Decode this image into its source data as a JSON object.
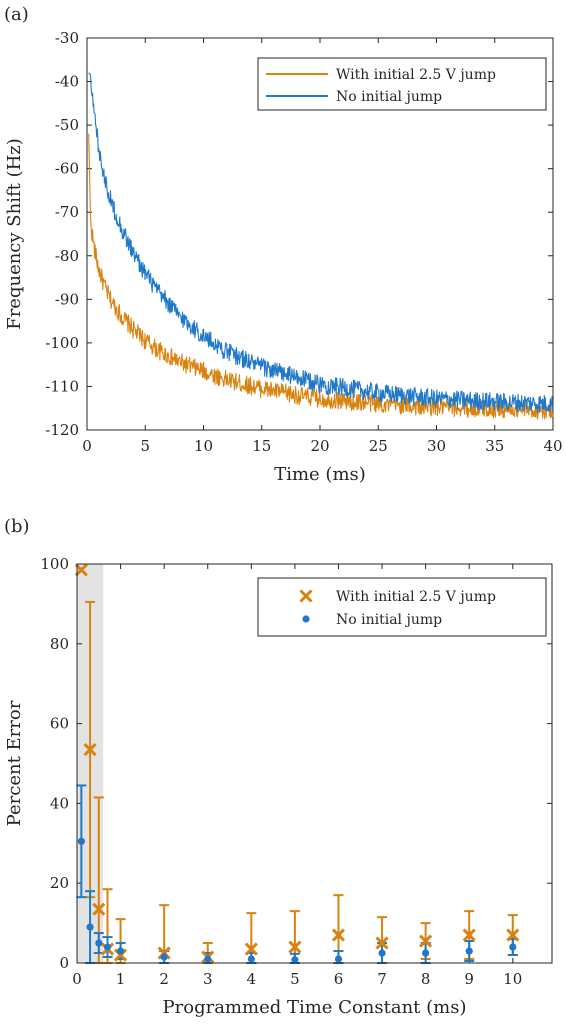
{
  "chart_data": [
    {
      "panel_label": "(a)",
      "type": "line",
      "xlabel": "Time (ms)",
      "ylabel": "Frequency Shift (Hz)",
      "xlim": [
        0,
        40
      ],
      "ylim": [
        -120,
        -30
      ],
      "xticks": [
        0,
        5,
        10,
        15,
        20,
        25,
        30,
        35,
        40
      ],
      "yticks": [
        -30,
        -40,
        -50,
        -60,
        -70,
        -80,
        -90,
        -100,
        -110,
        -120
      ],
      "legend_position": "top-right",
      "grid": false,
      "series": [
        {
          "name": "With initial 2.5 V jump",
          "color": "#d9820e",
          "x": [
            0.3,
            0.6,
            1,
            1.5,
            2,
            3,
            4,
            5,
            6,
            8,
            10,
            12,
            15,
            18,
            20,
            25,
            30,
            35,
            40
          ],
          "y": [
            -72,
            -78,
            -83,
            -87,
            -90,
            -94,
            -97,
            -99.5,
            -101.5,
            -104.5,
            -106.5,
            -108.5,
            -110.5,
            -112,
            -112.8,
            -114,
            -114.8,
            -115.2,
            -115.5
          ]
        },
        {
          "name": "No initial jump",
          "color": "#1f78c8",
          "x": [
            0.3,
            0.5,
            1,
            1.5,
            2,
            3,
            4,
            5,
            6,
            8,
            10,
            12,
            15,
            18,
            20,
            25,
            30,
            35,
            40
          ],
          "y": [
            -38,
            -45,
            -55,
            -62,
            -67,
            -74,
            -79.5,
            -84,
            -88,
            -94,
            -98.5,
            -102,
            -105.5,
            -108,
            -109.5,
            -111.5,
            -112.8,
            -113.5,
            -114
          ]
        }
      ]
    },
    {
      "panel_label": "(b)",
      "type": "scatter",
      "xlabel": "Programmed Time Constant (ms)",
      "ylabel": "Percent Error",
      "xlim": [
        0,
        10.9
      ],
      "ylim": [
        0,
        100
      ],
      "xticks": [
        0,
        1,
        2,
        3,
        4,
        5,
        6,
        7,
        8,
        9,
        10
      ],
      "yticks": [
        0,
        20,
        40,
        60,
        80,
        100
      ],
      "shaded_region_x": [
        0,
        0.6
      ],
      "legend_position": "top-right",
      "grid": false,
      "series": [
        {
          "name": "With initial 2.5 V jump",
          "color": "#d9820e",
          "marker": "x",
          "x": [
            0.1,
            0.3,
            0.5,
            0.7,
            1,
            2,
            3,
            4,
            5,
            6,
            7,
            8,
            9,
            10
          ],
          "y": [
            98.5,
            53.5,
            13.5,
            3.5,
            2,
            2.5,
            1.5,
            3.5,
            4,
            7,
            5,
            5.5,
            7,
            7
          ],
          "err": [
            0,
            37,
            28,
            15,
            9,
            12,
            3.5,
            9,
            9,
            10,
            6.5,
            4.5,
            6,
            5
          ]
        },
        {
          "name": "No initial jump",
          "color": "#1f78c8",
          "marker": "dot",
          "x": [
            0.1,
            0.3,
            0.5,
            0.7,
            1,
            2,
            3,
            4,
            5,
            6,
            7,
            8,
            9,
            10
          ],
          "y": [
            30.5,
            9,
            5,
            4,
            3,
            1.5,
            1,
            1,
            0.8,
            1,
            2.5,
            2.5,
            3,
            4
          ],
          "err": [
            14,
            9,
            2.5,
            2.5,
            2,
            1.5,
            1.5,
            1.5,
            1.5,
            2,
            2.5,
            2.5,
            2.5,
            2
          ]
        }
      ]
    }
  ]
}
